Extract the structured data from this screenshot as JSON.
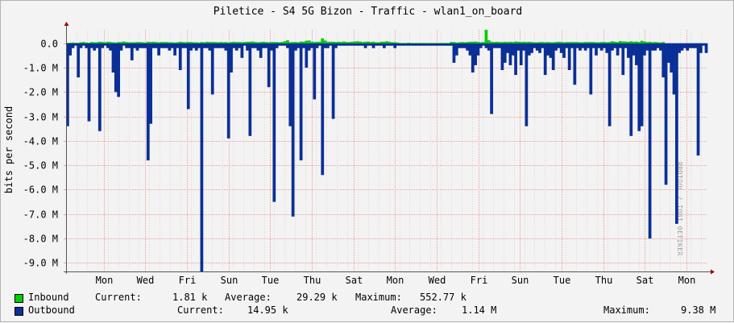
{
  "chart_data": {
    "type": "area",
    "title": "Piletice - S4 5G Bizon - Traffic - wlan1_on_board",
    "ylabel": "bits per second",
    "watermark": "RRDTOOL / TOBI OETIKER",
    "y_ticks": [
      "0.0",
      "-1.0 M",
      "-2.0 M",
      "-3.0 M",
      "-4.0 M",
      "-5.0 M",
      "-6.0 M",
      "-7.0 M",
      "-8.0 M",
      "-9.0 M"
    ],
    "y_tick_values": [
      0,
      -1,
      -2,
      -3,
      -4,
      -5,
      -6,
      -7,
      -8,
      -9
    ],
    "ylim": [
      -9.35,
      0.55
    ],
    "x_ticks": [
      "Mon",
      "Wed",
      "Fri",
      "Sun",
      "Tue",
      "Thu",
      "Sat",
      "Mon",
      "Wed",
      "Fri",
      "Sun",
      "Tue",
      "Thu",
      "Sat",
      "Mon"
    ],
    "x_range_days": [
      0,
      15.4
    ],
    "x_tick_days": [
      0.9,
      1.9,
      2.9,
      3.9,
      4.9,
      5.9,
      6.9,
      7.9,
      8.9,
      9.9,
      10.9,
      11.9,
      12.9,
      13.9,
      14.9
    ],
    "grid": true,
    "colors": {
      "inbound": "#00cc00",
      "outbound": "#0a2f96",
      "grid": "#e8a0a0",
      "axis": "#555555",
      "arrow": "#a00000"
    },
    "series": [
      {
        "name": "Inbound",
        "values": [
          0.02,
          0.02,
          0.03,
          0.02,
          0.02,
          0.04,
          0.05,
          0.03,
          0.02,
          0.05,
          0.04,
          0.04,
          0.06,
          0.05,
          0.04,
          0.06,
          0.05,
          0.04,
          0.03,
          0.05,
          0.05,
          0.07,
          0.05,
          0.04,
          0.04,
          0.04,
          0.05,
          0.05,
          0.04,
          0.03,
          0.06,
          0.05,
          0.06,
          0.05,
          0.04,
          0.05,
          0.05,
          0.05,
          0.04,
          0.04,
          0.03,
          0.04,
          0.06,
          0.05,
          0.04,
          0.05,
          0.05,
          0.04,
          0.04,
          0.03,
          0.05,
          0.04,
          0.06,
          0.05,
          0.05,
          0.05,
          0.04,
          0.05,
          0.04,
          0.05,
          0.03,
          0.05,
          0.06,
          0.05,
          0.05,
          0.04,
          0.05,
          0.06,
          0.06,
          0.07,
          0.05,
          0.04,
          0.05,
          0.06,
          0.05,
          0.04,
          0.05,
          0.05,
          0.05,
          0.04,
          0.05,
          0.08,
          0.12,
          0.04,
          0.05,
          0.05,
          0.04,
          0.07,
          0.06,
          0.1,
          0.11,
          0.06,
          0.05,
          0.06,
          0.06,
          0.2,
          0.11,
          0.06,
          0.06,
          0.06,
          0.05,
          0.06,
          0.05,
          0.07,
          0.05,
          0.05,
          0.06,
          0.07,
          0.08,
          0.07,
          0.05,
          0.06,
          0.07,
          0.05,
          0.06,
          0.04,
          0.04,
          0.06,
          0.06,
          0.08,
          0.06,
          0.04,
          0.04,
          0.03,
          0.01,
          0.01,
          0.01,
          0.02,
          0.01,
          0.01,
          0.01,
          0.01,
          0.01,
          0.01,
          0.01,
          0.01,
          0.01,
          0.01,
          0.01,
          0.01,
          0.01,
          0.01,
          0.01,
          0.05,
          0.05,
          0.03,
          0.04,
          0.05,
          0.04,
          0.05,
          0.06,
          0.06,
          0.07,
          0.05,
          0.04,
          0.05,
          0.55,
          0.12,
          0.06,
          0.05,
          0.06,
          0.05,
          0.05,
          0.06,
          0.05,
          0.06,
          0.05,
          0.07,
          0.06,
          0.05,
          0.06,
          0.05,
          0.06,
          0.05,
          0.04,
          0.04,
          0.05,
          0.05,
          0.04,
          0.05,
          0.04,
          0.04,
          0.05,
          0.06,
          0.05,
          0.04,
          0.05,
          0.05,
          0.05,
          0.05,
          0.05,
          0.04,
          0.04,
          0.05,
          0.05,
          0.05,
          0.05,
          0.04,
          0.04,
          0.05,
          0.05,
          0.04,
          0.05,
          0.08,
          0.06,
          0.05,
          0.09,
          0.07,
          0.07,
          0.06,
          0.08,
          0.06,
          0.07,
          0.05,
          0.1,
          0.07,
          0.05,
          0.06,
          0.04,
          0.05,
          0.04,
          0.03,
          0.05
        ]
      },
      {
        "name": "Outbound",
        "values": [
          -3.4,
          -0.5,
          -0.2,
          -0.1,
          -1.4,
          -0.2,
          -0.1,
          -0.2,
          -3.2,
          -0.2,
          -0.3,
          -0.2,
          -3.6,
          -0.2,
          -0.1,
          -0.2,
          -0.3,
          -1.2,
          -2.0,
          -2.2,
          -0.3,
          -0.1,
          -0.2,
          -0.2,
          -0.7,
          -0.2,
          -0.3,
          -0.2,
          -0.2,
          -0.2,
          -4.8,
          -3.3,
          -0.2,
          -0.2,
          -0.5,
          -0.2,
          -0.2,
          -0.2,
          -0.3,
          -0.2,
          -0.5,
          -0.2,
          -1.1,
          -0.2,
          -0.2,
          -2.7,
          -0.3,
          -0.2,
          -0.3,
          -0.2,
          -9.35,
          -0.2,
          -0.2,
          -0.3,
          -2.1,
          -0.2,
          -0.2,
          -0.2,
          -0.2,
          -0.3,
          -3.9,
          -1.2,
          -0.2,
          -0.3,
          -0.2,
          -0.6,
          -0.1,
          -0.3,
          -3.8,
          -0.2,
          -0.2,
          -0.3,
          -0.6,
          -0.2,
          -0.2,
          -1.8,
          -0.3,
          -6.5,
          -0.2,
          -0.1,
          -0.1,
          -0.1,
          -0.2,
          -3.4,
          -7.1,
          -0.3,
          -0.2,
          -4.8,
          -0.2,
          -1.0,
          -0.3,
          -0.2,
          -2.3,
          -0.2,
          -0.1,
          -5.4,
          -0.2,
          -0.2,
          -0.1,
          -3.1,
          -0.2,
          -0.1,
          -0.1,
          -0.1,
          -0.1,
          -0.1,
          -0.1,
          -0.1,
          -0.1,
          -0.1,
          -0.1,
          -0.2,
          -0.1,
          -0.1,
          -0.2,
          -0.1,
          -0.1,
          -0.1,
          -0.2,
          -0.1,
          -0.1,
          -0.1,
          -0.2,
          -0.1,
          -0.1,
          -0.1,
          -0.1,
          -0.1,
          -0.1,
          -0.1,
          -0.1,
          -0.1,
          -0.1,
          -0.1,
          -0.1,
          -0.1,
          -0.1,
          -0.1,
          -0.1,
          -0.1,
          -0.1,
          -0.1,
          -0.1,
          -0.1,
          -0.8,
          -0.5,
          -0.2,
          -0.2,
          -0.2,
          -0.3,
          -0.5,
          -1.2,
          -0.9,
          -0.5,
          -0.2,
          -0.1,
          -0.2,
          -0.3,
          -2.9,
          -0.2,
          -0.2,
          -0.2,
          -1.1,
          -0.8,
          -0.4,
          -0.9,
          -0.5,
          -1.3,
          -0.3,
          -0.9,
          -0.3,
          -3.4,
          -0.5,
          -0.4,
          -0.2,
          -0.3,
          -0.4,
          -0.2,
          -1.3,
          -0.5,
          -0.6,
          -1.1,
          -0.3,
          -0.2,
          -0.4,
          -0.6,
          -0.2,
          -1.1,
          -0.2,
          -1.7,
          -0.2,
          -0.3,
          -0.2,
          -0.3,
          -0.2,
          -2.1,
          -0.2,
          -0.5,
          -0.2,
          -0.3,
          -0.2,
          -0.4,
          -3.4,
          -0.3,
          -0.2,
          -0.5,
          -0.2,
          -1.3,
          -0.2,
          -0.6,
          -3.8,
          -0.5,
          -0.9,
          -3.6,
          -3.4,
          -0.5,
          -0.3,
          -8.0,
          -0.3,
          -0.3,
          -0.2,
          -0.3,
          -1.4,
          -5.8,
          -0.8,
          -1.2,
          -2.1,
          -7.4,
          -0.4,
          -0.3,
          -0.2,
          -0.3,
          -0.2,
          -0.2,
          -0.2,
          -4.6,
          -0.4,
          -0.1,
          -0.4
        ]
      }
    ]
  },
  "legend": {
    "inbound": {
      "name": "Inbound",
      "current_label": "Current:",
      "current": "1.81 k",
      "average_label": "Average:",
      "average": "29.29 k",
      "maximum_label": "Maximum:",
      "maximum": "552.77 k"
    },
    "outbound": {
      "name": "Outbound",
      "current_label": "Current:",
      "current": "14.95 k",
      "average_label": "Average:",
      "average": "1.14 M",
      "maximum_label": "Maximum:",
      "maximum": "9.38 M"
    }
  }
}
